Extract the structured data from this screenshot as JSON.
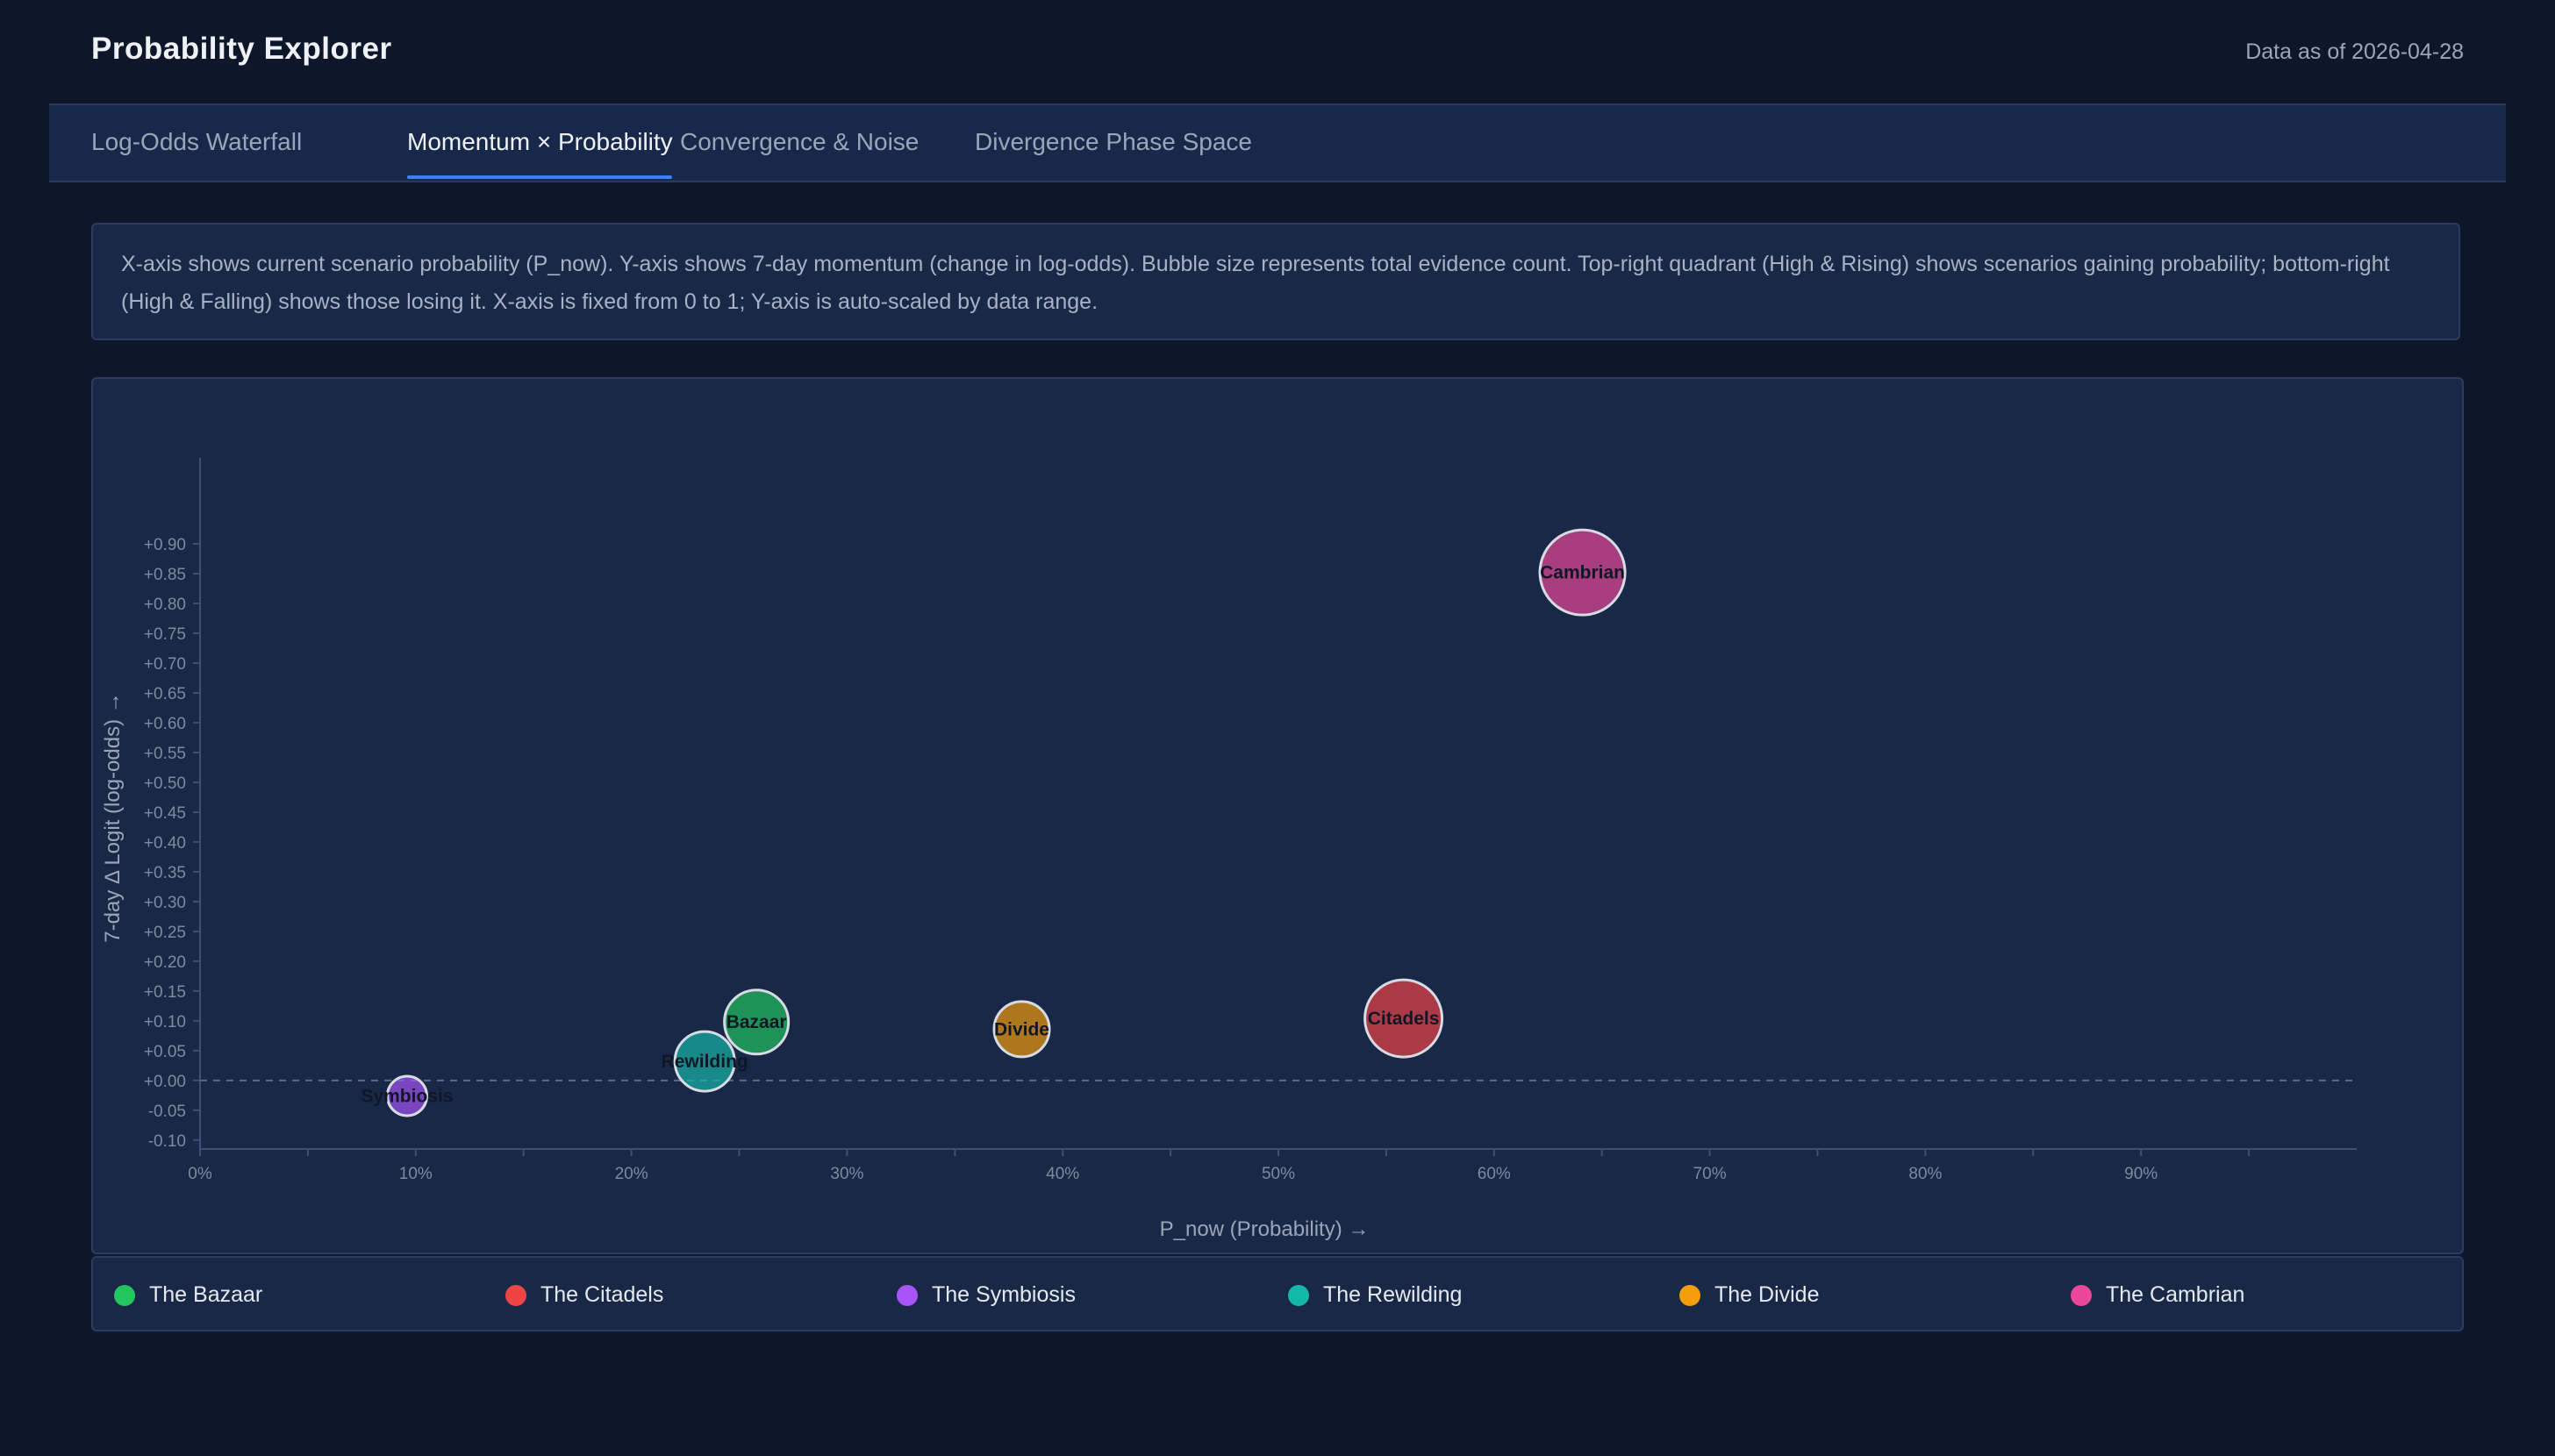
{
  "app": {
    "title": "Probability Explorer",
    "as_of": "Data as of 2026-04-28"
  },
  "tabs": [
    {
      "label": "Log-Odds Waterfall",
      "active": false
    },
    {
      "label": "Momentum × Probability",
      "active": true
    },
    {
      "label": "Convergence & Noise",
      "active": false
    },
    {
      "label": "Divergence Phase Space",
      "active": false
    }
  ],
  "description": "X-axis shows current scenario probability (P_now). Y-axis shows 7-day momentum (change in log-odds). Bubble size represents total evidence count. Top-right quadrant (High & Rising) shows scenarios gaining probability; bottom-right (High & Falling) shows those losing it. X-axis is fixed from 0 to 1; Y-axis is auto-scaled by data range.",
  "chart_data": {
    "type": "scatter",
    "xlabel": "P_now (Probability) →",
    "ylabel": "7-day Δ Logit (log-odds) →",
    "xlim": [
      0,
      1
    ],
    "ylim": [
      -0.115,
      1.0
    ],
    "x_ticks": [
      0,
      0.1,
      0.2,
      0.3,
      0.4,
      0.5,
      0.6,
      0.7,
      0.8,
      0.9
    ],
    "x_tick_labels": [
      "0%",
      "10%",
      "20%",
      "30%",
      "40%",
      "50%",
      "60%",
      "70%",
      "80%",
      "90%"
    ],
    "x_minor_ticks": [
      0.05,
      0.15,
      0.25,
      0.35,
      0.45,
      0.55,
      0.65,
      0.75,
      0.85,
      0.95
    ],
    "y_ticks": [
      -0.1,
      -0.05,
      0,
      0.05,
      0.1,
      0.15,
      0.2,
      0.25,
      0.3,
      0.35,
      0.4,
      0.45,
      0.5,
      0.55,
      0.6,
      0.65,
      0.7,
      0.75,
      0.8,
      0.85,
      0.9
    ],
    "y_tick_labels": [
      "-0.10",
      "-0.05",
      "+0.00",
      "+0.05",
      "+0.10",
      "+0.15",
      "+0.20",
      "+0.25",
      "+0.30",
      "+0.35",
      "+0.40",
      "+0.45",
      "+0.50",
      "+0.55",
      "+0.60",
      "+0.65",
      "+0.70",
      "+0.75",
      "+0.80",
      "+0.85",
      "+0.90"
    ],
    "zero_line": true,
    "legend_position": "bottom",
    "series": [
      {
        "name": "The Bazaar",
        "label": "Bazaar",
        "x": 0.258,
        "y": 0.098,
        "size": 0.73,
        "color": "#22c55e"
      },
      {
        "name": "The Citadels",
        "label": "Citadels",
        "x": 0.558,
        "y": 0.104,
        "size": 0.88,
        "color": "#ef4444"
      },
      {
        "name": "The Symbiosis",
        "label": "Symbiosis",
        "x": 0.096,
        "y": -0.026,
        "size": 0.45,
        "color": "#a855f7"
      },
      {
        "name": "The Rewilding",
        "label": "Rewilding",
        "x": 0.234,
        "y": 0.032,
        "size": 0.68,
        "color": "#14b8a6"
      },
      {
        "name": "The Divide",
        "label": "Divide",
        "x": 0.381,
        "y": 0.086,
        "size": 0.63,
        "color": "#f59e0b"
      },
      {
        "name": "The Cambrian",
        "label": "Cambrian",
        "x": 0.641,
        "y": 0.852,
        "size": 0.97,
        "color": "#ec4899"
      }
    ]
  }
}
